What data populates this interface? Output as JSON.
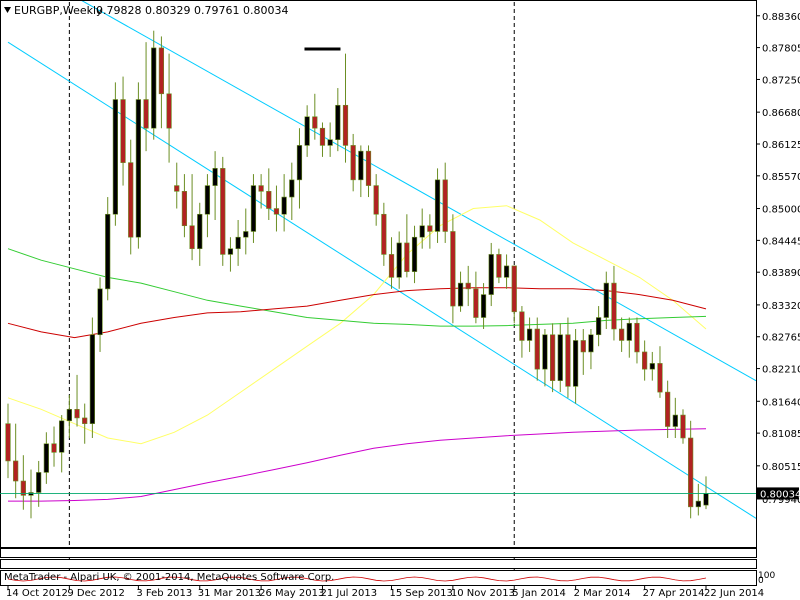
{
  "window": {
    "symbol_line": "EURGBP,Weekly",
    "ohlc": "0.79828 0.80329 0.79761 0.80034"
  },
  "indicator_panel": {
    "label": "MetaTrader - Alpari UK, © 2001-2014, MetaQuotes Software Corp.",
    "right_labels": [
      "100",
      "0"
    ]
  },
  "colors": {
    "bull": "#000000",
    "bear": "#b22222",
    "channel": "#00ccff",
    "ma_yellow": "#ffff66",
    "ma_green": "#33cc33",
    "ma_red": "#cc0000",
    "ma_magenta": "#cc00cc",
    "price_line": "#00a86b",
    "grid_divider": "#000000"
  },
  "chart_data": {
    "type": "candlestick",
    "timeframe": "Weekly",
    "ylim": [
      0.791,
      0.886
    ],
    "y_ticks": [
      "0.88360",
      "0.87805",
      "0.87250",
      "0.86680",
      "0.86125",
      "0.85570",
      "0.85000",
      "0.84445",
      "0.83890",
      "0.83320",
      "0.82765",
      "0.82210",
      "0.81640",
      "0.81085",
      "0.80515",
      "0.79940"
    ],
    "current_price": "0.80034",
    "x_ticks": [
      "14 Oct 2012",
      "9 Dec 2012",
      "3 Feb 2013",
      "31 Mar 2013",
      "26 May 2013",
      "21 Jul 2013",
      "15 Sep 2013",
      "10 Nov 2013",
      "5 Jan 2014",
      "2 Mar 2014",
      "27 Apr 2014",
      "22 Jun 2014"
    ],
    "period_separators": [
      "9 Dec 2012",
      "5 Jan 2014"
    ],
    "candles": [
      {
        "o": 0.8125,
        "h": 0.816,
        "l": 0.803,
        "c": 0.806
      },
      {
        "o": 0.806,
        "h": 0.8125,
        "l": 0.7995,
        "c": 0.8025
      },
      {
        "o": 0.8025,
        "h": 0.807,
        "l": 0.7975,
        "c": 0.8
      },
      {
        "o": 0.8,
        "h": 0.8045,
        "l": 0.796,
        "c": 0.8005
      },
      {
        "o": 0.8005,
        "h": 0.806,
        "l": 0.798,
        "c": 0.804
      },
      {
        "o": 0.804,
        "h": 0.811,
        "l": 0.802,
        "c": 0.809
      },
      {
        "o": 0.809,
        "h": 0.812,
        "l": 0.805,
        "c": 0.8075
      },
      {
        "o": 0.8075,
        "h": 0.814,
        "l": 0.804,
        "c": 0.813
      },
      {
        "o": 0.813,
        "h": 0.8175,
        "l": 0.81,
        "c": 0.815
      },
      {
        "o": 0.815,
        "h": 0.821,
        "l": 0.812,
        "c": 0.8135
      },
      {
        "o": 0.8135,
        "h": 0.816,
        "l": 0.809,
        "c": 0.8125
      },
      {
        "o": 0.8125,
        "h": 0.831,
        "l": 0.81,
        "c": 0.828
      },
      {
        "o": 0.828,
        "h": 0.838,
        "l": 0.825,
        "c": 0.836
      },
      {
        "o": 0.836,
        "h": 0.852,
        "l": 0.834,
        "c": 0.849
      },
      {
        "o": 0.849,
        "h": 0.872,
        "l": 0.847,
        "c": 0.869
      },
      {
        "o": 0.869,
        "h": 0.873,
        "l": 0.854,
        "c": 0.858
      },
      {
        "o": 0.858,
        "h": 0.862,
        "l": 0.842,
        "c": 0.845
      },
      {
        "o": 0.845,
        "h": 0.872,
        "l": 0.843,
        "c": 0.869
      },
      {
        "o": 0.869,
        "h": 0.879,
        "l": 0.86,
        "c": 0.864
      },
      {
        "o": 0.864,
        "h": 0.881,
        "l": 0.862,
        "c": 0.878
      },
      {
        "o": 0.878,
        "h": 0.88,
        "l": 0.864,
        "c": 0.87
      },
      {
        "o": 0.87,
        "h": 0.877,
        "l": 0.858,
        "c": 0.864
      },
      {
        "o": 0.854,
        "h": 0.858,
        "l": 0.85,
        "c": 0.853
      },
      {
        "o": 0.853,
        "h": 0.856,
        "l": 0.845,
        "c": 0.847
      },
      {
        "o": 0.847,
        "h": 0.856,
        "l": 0.841,
        "c": 0.843
      },
      {
        "o": 0.843,
        "h": 0.851,
        "l": 0.84,
        "c": 0.849
      },
      {
        "o": 0.849,
        "h": 0.856,
        "l": 0.845,
        "c": 0.854
      },
      {
        "o": 0.854,
        "h": 0.86,
        "l": 0.848,
        "c": 0.857
      },
      {
        "o": 0.857,
        "h": 0.859,
        "l": 0.84,
        "c": 0.842
      },
      {
        "o": 0.842,
        "h": 0.845,
        "l": 0.839,
        "c": 0.843
      },
      {
        "o": 0.843,
        "h": 0.848,
        "l": 0.84,
        "c": 0.845
      },
      {
        "o": 0.845,
        "h": 0.85,
        "l": 0.842,
        "c": 0.846
      },
      {
        "o": 0.846,
        "h": 0.856,
        "l": 0.844,
        "c": 0.854
      },
      {
        "o": 0.854,
        "h": 0.856,
        "l": 0.85,
        "c": 0.853
      },
      {
        "o": 0.853,
        "h": 0.857,
        "l": 0.848,
        "c": 0.85
      },
      {
        "o": 0.85,
        "h": 0.854,
        "l": 0.846,
        "c": 0.849
      },
      {
        "o": 0.849,
        "h": 0.856,
        "l": 0.846,
        "c": 0.852
      },
      {
        "o": 0.852,
        "h": 0.858,
        "l": 0.848,
        "c": 0.855
      },
      {
        "o": 0.855,
        "h": 0.864,
        "l": 0.85,
        "c": 0.861
      },
      {
        "o": 0.861,
        "h": 0.868,
        "l": 0.859,
        "c": 0.866
      },
      {
        "o": 0.866,
        "h": 0.87,
        "l": 0.862,
        "c": 0.864
      },
      {
        "o": 0.864,
        "h": 0.865,
        "l": 0.859,
        "c": 0.861
      },
      {
        "o": 0.861,
        "h": 0.865,
        "l": 0.859,
        "c": 0.862
      },
      {
        "o": 0.862,
        "h": 0.871,
        "l": 0.86,
        "c": 0.868
      },
      {
        "o": 0.868,
        "h": 0.877,
        "l": 0.858,
        "c": 0.861
      },
      {
        "o": 0.861,
        "h": 0.863,
        "l": 0.853,
        "c": 0.855
      },
      {
        "o": 0.855,
        "h": 0.861,
        "l": 0.852,
        "c": 0.86
      },
      {
        "o": 0.86,
        "h": 0.861,
        "l": 0.852,
        "c": 0.854
      },
      {
        "o": 0.854,
        "h": 0.856,
        "l": 0.847,
        "c": 0.849
      },
      {
        "o": 0.849,
        "h": 0.851,
        "l": 0.84,
        "c": 0.842
      },
      {
        "o": 0.842,
        "h": 0.845,
        "l": 0.836,
        "c": 0.838
      },
      {
        "o": 0.838,
        "h": 0.846,
        "l": 0.836,
        "c": 0.844
      },
      {
        "o": 0.844,
        "h": 0.849,
        "l": 0.838,
        "c": 0.839
      },
      {
        "o": 0.839,
        "h": 0.847,
        "l": 0.837,
        "c": 0.845
      },
      {
        "o": 0.845,
        "h": 0.85,
        "l": 0.843,
        "c": 0.847
      },
      {
        "o": 0.847,
        "h": 0.849,
        "l": 0.843,
        "c": 0.846
      },
      {
        "o": 0.846,
        "h": 0.857,
        "l": 0.844,
        "c": 0.855
      },
      {
        "o": 0.855,
        "h": 0.858,
        "l": 0.844,
        "c": 0.846
      },
      {
        "o": 0.846,
        "h": 0.849,
        "l": 0.83,
        "c": 0.833
      },
      {
        "o": 0.833,
        "h": 0.839,
        "l": 0.832,
        "c": 0.837
      },
      {
        "o": 0.837,
        "h": 0.84,
        "l": 0.833,
        "c": 0.836
      },
      {
        "o": 0.836,
        "h": 0.839,
        "l": 0.83,
        "c": 0.831
      },
      {
        "o": 0.831,
        "h": 0.837,
        "l": 0.829,
        "c": 0.835
      },
      {
        "o": 0.835,
        "h": 0.844,
        "l": 0.833,
        "c": 0.842
      },
      {
        "o": 0.842,
        "h": 0.843,
        "l": 0.837,
        "c": 0.838
      },
      {
        "o": 0.838,
        "h": 0.842,
        "l": 0.836,
        "c": 0.84
      },
      {
        "o": 0.84,
        "h": 0.84,
        "l": 0.83,
        "c": 0.832
      },
      {
        "o": 0.832,
        "h": 0.833,
        "l": 0.824,
        "c": 0.827
      },
      {
        "o": 0.827,
        "h": 0.831,
        "l": 0.825,
        "c": 0.829
      },
      {
        "o": 0.829,
        "h": 0.831,
        "l": 0.82,
        "c": 0.822
      },
      {
        "o": 0.822,
        "h": 0.829,
        "l": 0.819,
        "c": 0.828
      },
      {
        "o": 0.828,
        "h": 0.83,
        "l": 0.818,
        "c": 0.82
      },
      {
        "o": 0.82,
        "h": 0.83,
        "l": 0.818,
        "c": 0.828
      },
      {
        "o": 0.828,
        "h": 0.831,
        "l": 0.817,
        "c": 0.819
      },
      {
        "o": 0.819,
        "h": 0.829,
        "l": 0.816,
        "c": 0.827
      },
      {
        "o": 0.827,
        "h": 0.829,
        "l": 0.821,
        "c": 0.825
      },
      {
        "o": 0.825,
        "h": 0.829,
        "l": 0.822,
        "c": 0.828
      },
      {
        "o": 0.828,
        "h": 0.833,
        "l": 0.826,
        "c": 0.831
      },
      {
        "o": 0.831,
        "h": 0.839,
        "l": 0.829,
        "c": 0.837
      },
      {
        "o": 0.837,
        "h": 0.84,
        "l": 0.827,
        "c": 0.829
      },
      {
        "o": 0.829,
        "h": 0.831,
        "l": 0.825,
        "c": 0.827
      },
      {
        "o": 0.827,
        "h": 0.831,
        "l": 0.824,
        "c": 0.83
      },
      {
        "o": 0.83,
        "h": 0.831,
        "l": 0.823,
        "c": 0.825
      },
      {
        "o": 0.825,
        "h": 0.827,
        "l": 0.82,
        "c": 0.822
      },
      {
        "o": 0.822,
        "h": 0.825,
        "l": 0.82,
        "c": 0.823
      },
      {
        "o": 0.823,
        "h": 0.826,
        "l": 0.817,
        "c": 0.818
      },
      {
        "o": 0.818,
        "h": 0.82,
        "l": 0.81,
        "c": 0.812
      },
      {
        "o": 0.812,
        "h": 0.817,
        "l": 0.81,
        "c": 0.814
      },
      {
        "o": 0.814,
        "h": 0.815,
        "l": 0.809,
        "c": 0.81
      },
      {
        "o": 0.81,
        "h": 0.813,
        "l": 0.796,
        "c": 0.798
      },
      {
        "o": 0.798,
        "h": 0.802,
        "l": 0.7965,
        "c": 0.799
      },
      {
        "o": 0.7983,
        "h": 0.8033,
        "l": 0.7976,
        "c": 0.8003
      }
    ],
    "channel_lines": [
      {
        "from": [
          "14 Oct 2012",
          0.8935
        ],
        "to": [
          "22 Jun 2014",
          0.82
        ]
      },
      {
        "from": [
          "14 Oct 2012",
          0.879
        ],
        "to": [
          "22 Jun 2014",
          0.796
        ]
      }
    ],
    "moving_averages": [
      {
        "color": "ma_yellow",
        "values": [
          0.817,
          0.815,
          0.8125,
          0.81,
          0.809,
          0.811,
          0.814,
          0.818,
          0.822,
          0.826,
          0.83,
          0.835,
          0.842,
          0.847,
          0.85,
          0.8505,
          0.848,
          0.844,
          0.841,
          0.838,
          0.834,
          0.829
        ]
      },
      {
        "color": "ma_green",
        "values": [
          0.843,
          0.841,
          0.8395,
          0.838,
          0.837,
          0.8355,
          0.834,
          0.833,
          0.832,
          0.831,
          0.8305,
          0.83,
          0.8298,
          0.8295,
          0.8295,
          0.8296,
          0.8298,
          0.83,
          0.8305,
          0.8308,
          0.831,
          0.8312
        ]
      },
      {
        "color": "ma_red",
        "values": [
          0.83,
          0.8285,
          0.8275,
          0.8285,
          0.83,
          0.831,
          0.8318,
          0.832,
          0.8325,
          0.833,
          0.834,
          0.835,
          0.8357,
          0.836,
          0.8362,
          0.8362,
          0.836,
          0.836,
          0.8357,
          0.835,
          0.834,
          0.8325
        ]
      },
      {
        "color": "ma_magenta",
        "values": [
          0.799,
          0.799,
          0.7991,
          0.7993,
          0.7998,
          0.801,
          0.8022,
          0.8033,
          0.8045,
          0.8057,
          0.807,
          0.8082,
          0.809,
          0.8096,
          0.81,
          0.8104,
          0.8107,
          0.811,
          0.8112,
          0.8114,
          0.8115,
          0.8116
        ]
      }
    ],
    "marker": {
      "label": "high marker",
      "value": 0.8778
    }
  }
}
